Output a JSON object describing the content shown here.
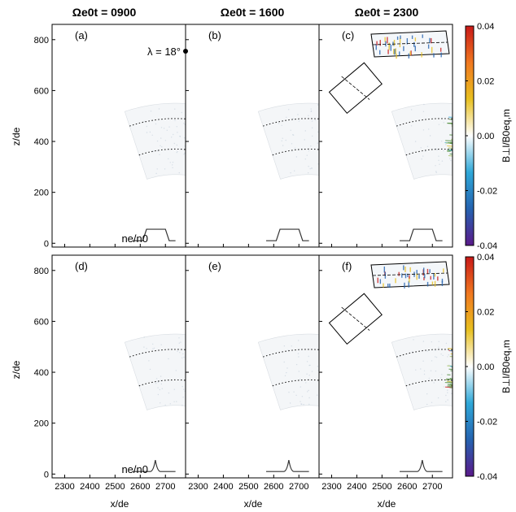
{
  "chart_data": {
    "type": "heatmap",
    "column_titles": [
      "Ωe0t = 0900",
      "Ωe0t = 1600",
      "Ωe0t = 2300"
    ],
    "panels": [
      {
        "label": "(a)",
        "time": 900,
        "row": 0,
        "col": 0,
        "profile_label": "ne/n0",
        "profile_value": "1",
        "profile_shape": "plateau"
      },
      {
        "label": "(b)",
        "time": 1600,
        "row": 0,
        "col": 1,
        "profile_shape": "plateau",
        "annotation": "λ = 18°"
      },
      {
        "label": "(c)",
        "time": 2300,
        "row": 0,
        "col": 2,
        "profile_shape": "plateau",
        "inset": true
      },
      {
        "label": "(d)",
        "time": 900,
        "row": 1,
        "col": 0,
        "profile_label": "ne/n0",
        "profile_value": "1",
        "profile_shape": "bump"
      },
      {
        "label": "(e)",
        "time": 1600,
        "row": 1,
        "col": 1,
        "profile_shape": "bump"
      },
      {
        "label": "(f)",
        "time": 2300,
        "row": 1,
        "col": 2,
        "profile_shape": "bump",
        "inset": true
      }
    ],
    "x_axis": {
      "label": "x/de",
      "range": [
        2250,
        2780
      ],
      "ticks": [
        2300,
        2400,
        2500,
        2600,
        2700
      ]
    },
    "y_axis": {
      "label": "z/de",
      "range": [
        -15,
        860
      ],
      "ticks": [
        0,
        200,
        400,
        600,
        800
      ]
    },
    "colorbar": {
      "label": "B⊥l/B0eq,m",
      "range": [
        -0.04,
        0.04
      ],
      "ticks": [
        "0.04",
        "0.02",
        "0.00",
        "-0.02",
        "-0.04"
      ],
      "colors": [
        "#5a1a8a",
        "#2563b0",
        "#2fa8d8",
        "#ffffff",
        "#e8c020",
        "#f07820",
        "#c81818"
      ]
    },
    "geometry_notes": "field line arcs centred near x=2740, z=-90 (data units)"
  }
}
